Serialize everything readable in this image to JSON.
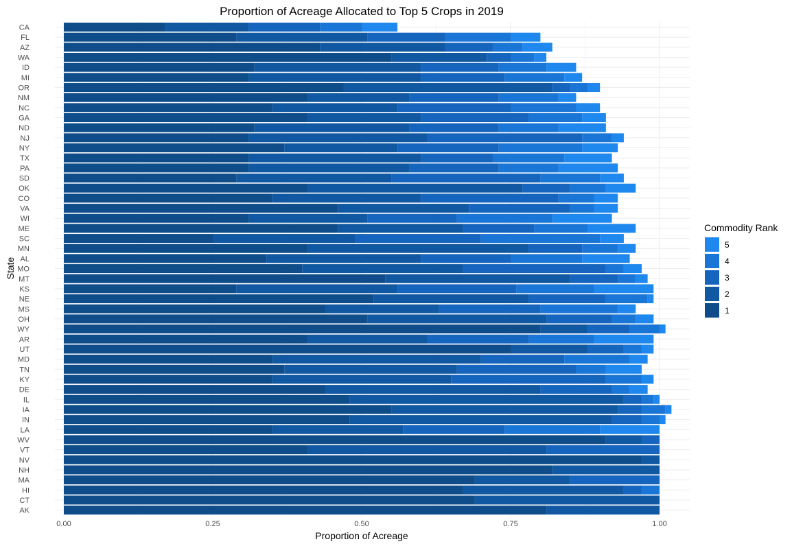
{
  "chart_data": {
    "type": "bar",
    "orientation": "horizontal",
    "stacked": true,
    "title": "Proportion of Acreage Allocated to Top 5 Crops in 2019",
    "xlabel": "Proportion of Acreage",
    "ylabel": "State",
    "xlim": [
      0,
      1
    ],
    "x_ticks": [
      "0.00",
      "0.25",
      "0.50",
      "0.75",
      "1.00"
    ],
    "x_tick_values": [
      0,
      0.25,
      0.5,
      0.75,
      1.0
    ],
    "grid": true,
    "legend": {
      "title": "Commodity Rank",
      "placement": "right",
      "items": [
        "5",
        "4",
        "3",
        "2",
        "1"
      ]
    },
    "colors": {
      "1": "#0e4c8a",
      "2": "#1158a2",
      "3": "#1565be",
      "4": "#1a76d6",
      "5": "#1e88ee"
    },
    "categories": [
      "CA",
      "FL",
      "AZ",
      "WA",
      "ID",
      "MI",
      "OR",
      "NM",
      "NC",
      "GA",
      "ND",
      "NJ",
      "NY",
      "TX",
      "PA",
      "SD",
      "OK",
      "CO",
      "VA",
      "WI",
      "ME",
      "SC",
      "MN",
      "AL",
      "MO",
      "MT",
      "KS",
      "NE",
      "MS",
      "OH",
      "WY",
      "AR",
      "UT",
      "MD",
      "TN",
      "KY",
      "DE",
      "IL",
      "IA",
      "IN",
      "LA",
      "WV",
      "VT",
      "NV",
      "NH",
      "MA",
      "HI",
      "CT",
      "AK"
    ],
    "series": [
      {
        "name": "1",
        "values": [
          0.17,
          0.29,
          0.43,
          0.55,
          0.32,
          0.31,
          0.47,
          0.41,
          0.35,
          0.41,
          0.32,
          0.31,
          0.37,
          0.31,
          0.31,
          0.29,
          0.41,
          0.35,
          0.46,
          0.31,
          0.46,
          0.25,
          0.41,
          0.34,
          0.4,
          0.54,
          0.29,
          0.52,
          0.44,
          0.51,
          0.8,
          0.41,
          0.75,
          0.35,
          0.37,
          0.35,
          0.44,
          0.48,
          0.55,
          0.48,
          0.35,
          0.91,
          0.41,
          0.97,
          0.82,
          0.69,
          0.67,
          0.69,
          0.81
        ]
      },
      {
        "name": "2",
        "values": [
          0.14,
          0.22,
          0.21,
          0.16,
          0.28,
          0.29,
          0.35,
          0.17,
          0.21,
          0.19,
          0.26,
          0.3,
          0.19,
          0.29,
          0.27,
          0.26,
          0.36,
          0.25,
          0.22,
          0.2,
          0.21,
          0.24,
          0.37,
          0.26,
          0.27,
          0.31,
          0.27,
          0.26,
          0.19,
          0.3,
          0.08,
          0.2,
          0.13,
          0.35,
          0.29,
          0.3,
          0.36,
          0.46,
          0.38,
          0.44,
          0.22,
          0.06,
          0.4,
          0.03,
          0.18,
          0.16,
          0.27,
          0.31,
          0.19
        ]
      },
      {
        "name": "3",
        "values": [
          0.12,
          0.13,
          0.08,
          0.04,
          0.13,
          0.14,
          0.03,
          0.15,
          0.19,
          0.18,
          0.15,
          0.26,
          0.17,
          0.12,
          0.15,
          0.25,
          0.08,
          0.23,
          0.17,
          0.15,
          0.12,
          0.21,
          0.09,
          0.15,
          0.24,
          0.08,
          0.2,
          0.13,
          0.17,
          0.11,
          0.07,
          0.17,
          0.06,
          0.14,
          0.2,
          0.26,
          0.12,
          0.03,
          0.04,
          0.05,
          0.17,
          0.03,
          0.19,
          0.0,
          0.0,
          0.15,
          0.03,
          0.0,
          0.0
        ]
      },
      {
        "name": "4",
        "values": [
          0.07,
          0.11,
          0.05,
          0.04,
          0.08,
          0.1,
          0.03,
          0.1,
          0.11,
          0.09,
          0.1,
          0.05,
          0.14,
          0.12,
          0.1,
          0.1,
          0.06,
          0.06,
          0.04,
          0.16,
          0.09,
          0.2,
          0.06,
          0.12,
          0.03,
          0.03,
          0.13,
          0.07,
          0.13,
          0.04,
          0.05,
          0.11,
          0.03,
          0.11,
          0.05,
          0.06,
          0.03,
          0.02,
          0.04,
          0.03,
          0.16,
          0.0,
          0.0,
          0.0,
          0.0,
          0.0,
          0.03,
          0.0,
          0.0
        ]
      },
      {
        "name": "5",
        "values": [
          0.06,
          0.05,
          0.05,
          0.02,
          0.05,
          0.03,
          0.02,
          0.03,
          0.04,
          0.04,
          0.08,
          0.02,
          0.06,
          0.08,
          0.1,
          0.04,
          0.05,
          0.04,
          0.04,
          0.1,
          0.08,
          0.04,
          0.03,
          0.08,
          0.03,
          0.02,
          0.1,
          0.01,
          0.03,
          0.03,
          0.01,
          0.1,
          0.02,
          0.03,
          0.06,
          0.02,
          0.03,
          0.01,
          0.01,
          0.01,
          0.1,
          0.0,
          0.0,
          0.0,
          0.0,
          0.0,
          0.0,
          0.0,
          0.0
        ]
      }
    ]
  }
}
